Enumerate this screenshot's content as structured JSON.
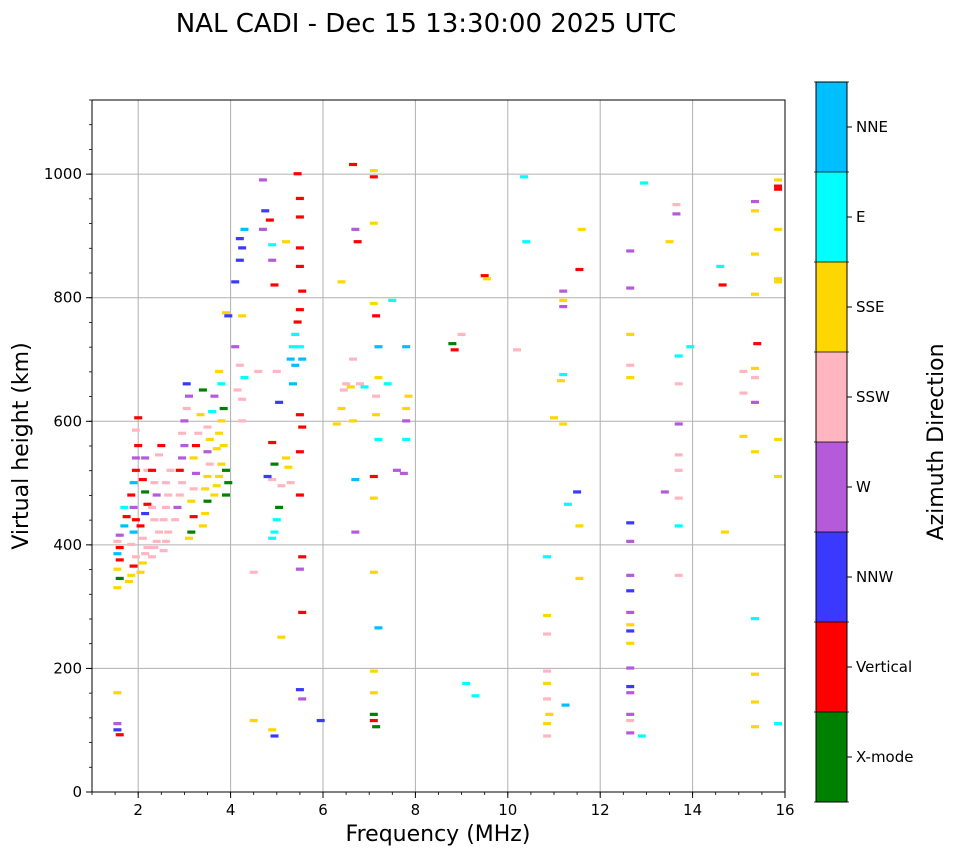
{
  "chart_data": {
    "type": "scatter",
    "title": "NAL CADI - Dec 15 13:30:00 2025 UTC",
    "xlabel": "Frequency (MHz)",
    "ylabel": "Virtual height (km)",
    "xlim": [
      1,
      16
    ],
    "ylim": [
      0,
      1120
    ],
    "xticks": [
      2,
      4,
      6,
      8,
      10,
      12,
      14,
      16
    ],
    "yticks": [
      0,
      200,
      400,
      600,
      800,
      1000
    ],
    "grid": true,
    "colorbar": {
      "title": "Azimuth Direction",
      "categories": [
        {
          "label": "X-mode",
          "color": "#008000"
        },
        {
          "label": "Vertical",
          "color": "#ff0000"
        },
        {
          "label": "NNW",
          "color": "#3a3aff"
        },
        {
          "label": "W",
          "color": "#b55ad8"
        },
        {
          "label": "SSW",
          "color": "#ffb6c1"
        },
        {
          "label": "SSE",
          "color": "#ffd700"
        },
        {
          "label": "E",
          "color": "#00ffff"
        },
        {
          "label": "NNE",
          "color": "#00bfff"
        }
      ]
    },
    "points": [
      [
        1.55,
        110,
        "W"
      ],
      [
        1.55,
        100,
        "NNW"
      ],
      [
        1.6,
        92,
        "Vertical"
      ],
      [
        1.55,
        160,
        "SSE"
      ],
      [
        1.55,
        330,
        "SSE"
      ],
      [
        1.6,
        345,
        "X-mode"
      ],
      [
        1.55,
        360,
        "SSE"
      ],
      [
        1.6,
        375,
        "Vertical"
      ],
      [
        1.55,
        385,
        "NNE"
      ],
      [
        1.6,
        395,
        "Vertical"
      ],
      [
        1.55,
        405,
        "SSW"
      ],
      [
        1.6,
        415,
        "W"
      ],
      [
        1.7,
        430,
        "NNE"
      ],
      [
        1.75,
        445,
        "Vertical"
      ],
      [
        1.7,
        460,
        "E"
      ],
      [
        1.8,
        340,
        "SSE"
      ],
      [
        1.85,
        350,
        "SSE"
      ],
      [
        1.9,
        365,
        "Vertical"
      ],
      [
        1.95,
        380,
        "SSW"
      ],
      [
        1.85,
        400,
        "SSW"
      ],
      [
        1.9,
        420,
        "NNE"
      ],
      [
        1.95,
        440,
        "Vertical"
      ],
      [
        1.9,
        460,
        "W"
      ],
      [
        1.85,
        480,
        "Vertical"
      ],
      [
        1.9,
        500,
        "NNE"
      ],
      [
        1.95,
        520,
        "Vertical"
      ],
      [
        1.95,
        540,
        "W"
      ],
      [
        2.0,
        560,
        "Vertical"
      ],
      [
        1.95,
        585,
        "SSW"
      ],
      [
        2.0,
        605,
        "Vertical"
      ],
      [
        2.05,
        355,
        "SSE"
      ],
      [
        2.1,
        370,
        "SSE"
      ],
      [
        2.15,
        385,
        "SSW"
      ],
      [
        2.2,
        395,
        "SSW"
      ],
      [
        2.1,
        410,
        "SSW"
      ],
      [
        2.05,
        430,
        "Vertical"
      ],
      [
        2.15,
        450,
        "NNW"
      ],
      [
        2.2,
        465,
        "Vertical"
      ],
      [
        2.15,
        485,
        "X-mode"
      ],
      [
        2.1,
        505,
        "Vertical"
      ],
      [
        2.2,
        520,
        "SSW"
      ],
      [
        2.15,
        540,
        "W"
      ],
      [
        2.3,
        380,
        "SSW"
      ],
      [
        2.35,
        395,
        "SSW"
      ],
      [
        2.4,
        405,
        "SSW"
      ],
      [
        2.45,
        420,
        "SSW"
      ],
      [
        2.35,
        440,
        "SSW"
      ],
      [
        2.3,
        460,
        "SSW"
      ],
      [
        2.4,
        480,
        "W"
      ],
      [
        2.35,
        500,
        "SSW"
      ],
      [
        2.3,
        520,
        "Vertical"
      ],
      [
        2.45,
        545,
        "SSW"
      ],
      [
        2.5,
        560,
        "Vertical"
      ],
      [
        2.55,
        390,
        "SSW"
      ],
      [
        2.6,
        405,
        "SSW"
      ],
      [
        2.65,
        420,
        "SSW"
      ],
      [
        2.55,
        440,
        "SSW"
      ],
      [
        2.6,
        460,
        "SSW"
      ],
      [
        2.65,
        480,
        "SSW"
      ],
      [
        2.6,
        500,
        "SSW"
      ],
      [
        2.7,
        520,
        "SSW"
      ],
      [
        2.8,
        440,
        "SSW"
      ],
      [
        2.85,
        460,
        "W"
      ],
      [
        2.9,
        480,
        "SSW"
      ],
      [
        2.95,
        500,
        "SSW"
      ],
      [
        2.9,
        520,
        "Vertical"
      ],
      [
        2.95,
        540,
        "W"
      ],
      [
        3.0,
        560,
        "W"
      ],
      [
        2.95,
        580,
        "SSW"
      ],
      [
        3.0,
        600,
        "W"
      ],
      [
        3.05,
        620,
        "SSW"
      ],
      [
        3.1,
        640,
        "W"
      ],
      [
        3.05,
        660,
        "NNW"
      ],
      [
        3.1,
        410,
        "SSE"
      ],
      [
        3.15,
        420,
        "X-mode"
      ],
      [
        3.2,
        445,
        "Vertical"
      ],
      [
        3.15,
        470,
        "SSE"
      ],
      [
        3.2,
        490,
        "SSW"
      ],
      [
        3.25,
        515,
        "W"
      ],
      [
        3.2,
        540,
        "SSE"
      ],
      [
        3.25,
        560,
        "Vertical"
      ],
      [
        3.3,
        580,
        "SSW"
      ],
      [
        3.35,
        610,
        "SSE"
      ],
      [
        3.4,
        650,
        "X-mode"
      ],
      [
        3.4,
        430,
        "SSE"
      ],
      [
        3.45,
        450,
        "SSE"
      ],
      [
        3.5,
        470,
        "X-mode"
      ],
      [
        3.45,
        490,
        "SSE"
      ],
      [
        3.5,
        510,
        "SSE"
      ],
      [
        3.55,
        530,
        "SSW"
      ],
      [
        3.5,
        550,
        "W"
      ],
      [
        3.55,
        570,
        "SSE"
      ],
      [
        3.5,
        590,
        "SSW"
      ],
      [
        3.6,
        615,
        "E"
      ],
      [
        3.65,
        640,
        "W"
      ],
      [
        3.65,
        480,
        "SSE"
      ],
      [
        3.7,
        495,
        "SSE"
      ],
      [
        3.75,
        510,
        "SSE"
      ],
      [
        3.8,
        530,
        "SSE"
      ],
      [
        3.7,
        555,
        "SSE"
      ],
      [
        3.75,
        580,
        "SSE"
      ],
      [
        3.8,
        600,
        "SSE"
      ],
      [
        3.85,
        620,
        "X-mode"
      ],
      [
        3.8,
        660,
        "E"
      ],
      [
        3.75,
        680,
        "SSE"
      ],
      [
        3.9,
        480,
        "X-mode"
      ],
      [
        3.95,
        500,
        "X-mode"
      ],
      [
        3.9,
        520,
        "X-mode"
      ],
      [
        3.85,
        560,
        "SSE"
      ],
      [
        3.9,
        775,
        "SSE"
      ],
      [
        3.95,
        770,
        "NNW"
      ],
      [
        4.1,
        720,
        "W"
      ],
      [
        4.2,
        690,
        "SSW"
      ],
      [
        4.15,
        650,
        "SSW"
      ],
      [
        4.25,
        635,
        "SSW"
      ],
      [
        4.3,
        670,
        "E"
      ],
      [
        4.25,
        600,
        "SSW"
      ],
      [
        4.1,
        825,
        "NNW"
      ],
      [
        4.2,
        860,
        "NNW"
      ],
      [
        4.25,
        880,
        "NNW"
      ],
      [
        4.3,
        910,
        "NNE"
      ],
      [
        4.2,
        895,
        "NNW"
      ],
      [
        4.25,
        770,
        "SSE"
      ],
      [
        4.5,
        115,
        "SSE"
      ],
      [
        4.5,
        355,
        "SSW"
      ],
      [
        4.6,
        680,
        "SSW"
      ],
      [
        4.7,
        990,
        "W"
      ],
      [
        4.75,
        940,
        "NNW"
      ],
      [
        4.7,
        910,
        "W"
      ],
      [
        4.85,
        925,
        "Vertical"
      ],
      [
        4.9,
        885,
        "E"
      ],
      [
        4.9,
        860,
        "W"
      ],
      [
        4.95,
        820,
        "Vertical"
      ],
      [
        4.9,
        565,
        "Vertical"
      ],
      [
        4.95,
        530,
        "X-mode"
      ],
      [
        4.9,
        505,
        "SSW"
      ],
      [
        4.8,
        510,
        "NNW"
      ],
      [
        4.9,
        100,
        "SSE"
      ],
      [
        4.95,
        90,
        "NNW"
      ],
      [
        4.9,
        410,
        "E"
      ],
      [
        4.95,
        420,
        "E"
      ],
      [
        5.0,
        440,
        "E"
      ],
      [
        5.05,
        460,
        "X-mode"
      ],
      [
        5.1,
        495,
        "SSW"
      ],
      [
        5.05,
        630,
        "NNW"
      ],
      [
        5.0,
        680,
        "SSW"
      ],
      [
        5.1,
        250,
        "SSE"
      ],
      [
        5.2,
        540,
        "SSE"
      ],
      [
        5.25,
        525,
        "SSE"
      ],
      [
        5.3,
        500,
        "SSW"
      ],
      [
        5.2,
        890,
        "SSE"
      ],
      [
        5.3,
        700,
        "NNE"
      ],
      [
        5.4,
        690,
        "NNE"
      ],
      [
        5.35,
        720,
        "E"
      ],
      [
        5.4,
        740,
        "E"
      ],
      [
        5.35,
        660,
        "NNE"
      ],
      [
        5.45,
        1000,
        "Vertical"
      ],
      [
        5.5,
        960,
        "Vertical"
      ],
      [
        5.5,
        930,
        "Vertical"
      ],
      [
        5.5,
        880,
        "Vertical"
      ],
      [
        5.5,
        850,
        "Vertical"
      ],
      [
        5.55,
        810,
        "Vertical"
      ],
      [
        5.5,
        780,
        "Vertical"
      ],
      [
        5.45,
        760,
        "Vertical"
      ],
      [
        5.5,
        720,
        "E"
      ],
      [
        5.55,
        700,
        "NNE"
      ],
      [
        5.5,
        610,
        "Vertical"
      ],
      [
        5.55,
        590,
        "Vertical"
      ],
      [
        5.5,
        550,
        "Vertical"
      ],
      [
        5.5,
        480,
        "Vertical"
      ],
      [
        5.55,
        380,
        "Vertical"
      ],
      [
        5.5,
        360,
        "W"
      ],
      [
        5.55,
        290,
        "Vertical"
      ],
      [
        5.5,
        165,
        "NNW"
      ],
      [
        5.55,
        150,
        "W"
      ],
      [
        5.95,
        115,
        "NNW"
      ],
      [
        6.3,
        595,
        "SSE"
      ],
      [
        6.4,
        620,
        "SSE"
      ],
      [
        6.45,
        650,
        "SSW"
      ],
      [
        6.5,
        660,
        "SSW"
      ],
      [
        6.6,
        655,
        "SSE"
      ],
      [
        6.65,
        600,
        "SSE"
      ],
      [
        6.65,
        700,
        "SSW"
      ],
      [
        6.7,
        420,
        "W"
      ],
      [
        6.7,
        505,
        "NNE"
      ],
      [
        6.8,
        660,
        "SSW"
      ],
      [
        6.9,
        655,
        "E"
      ],
      [
        6.75,
        890,
        "Vertical"
      ],
      [
        6.7,
        910,
        "W"
      ],
      [
        6.65,
        1015,
        "Vertical"
      ],
      [
        6.4,
        825,
        "SSE"
      ],
      [
        7.1,
        1005,
        "SSE"
      ],
      [
        7.1,
        995,
        "Vertical"
      ],
      [
        7.1,
        920,
        "SSE"
      ],
      [
        7.1,
        790,
        "SSE"
      ],
      [
        7.15,
        770,
        "Vertical"
      ],
      [
        7.2,
        720,
        "NNE"
      ],
      [
        7.2,
        670,
        "SSE"
      ],
      [
        7.15,
        640,
        "SSW"
      ],
      [
        7.15,
        610,
        "SSE"
      ],
      [
        7.2,
        570,
        "E"
      ],
      [
        7.1,
        510,
        "Vertical"
      ],
      [
        7.1,
        475,
        "SSE"
      ],
      [
        7.1,
        355,
        "SSE"
      ],
      [
        7.2,
        265,
        "NNE"
      ],
      [
        7.1,
        195,
        "SSE"
      ],
      [
        7.1,
        160,
        "SSE"
      ],
      [
        7.1,
        125,
        "X-mode"
      ],
      [
        7.1,
        115,
        "Vertical"
      ],
      [
        7.15,
        105,
        "X-mode"
      ],
      [
        7.4,
        660,
        "E"
      ],
      [
        7.5,
        795,
        "E"
      ],
      [
        7.6,
        520,
        "W"
      ],
      [
        7.8,
        720,
        "NNE"
      ],
      [
        7.8,
        620,
        "SSE"
      ],
      [
        7.8,
        600,
        "W"
      ],
      [
        7.8,
        570,
        "E"
      ],
      [
        7.75,
        515,
        "W"
      ],
      [
        7.85,
        640,
        "SSE"
      ],
      [
        8.8,
        725,
        "X-mode"
      ],
      [
        8.85,
        715,
        "Vertical"
      ],
      [
        9.0,
        740,
        "SSW"
      ],
      [
        9.1,
        175,
        "E"
      ],
      [
        9.3,
        155,
        "E"
      ],
      [
        9.5,
        835,
        "Vertical"
      ],
      [
        9.55,
        830,
        "SSE"
      ],
      [
        10.2,
        715,
        "SSW"
      ],
      [
        10.35,
        995,
        "E"
      ],
      [
        10.4,
        890,
        "E"
      ],
      [
        10.85,
        380,
        "E"
      ],
      [
        10.85,
        285,
        "SSE"
      ],
      [
        10.85,
        255,
        "SSW"
      ],
      [
        10.85,
        195,
        "SSW"
      ],
      [
        10.85,
        175,
        "SSE"
      ],
      [
        10.85,
        150,
        "SSW"
      ],
      [
        10.9,
        125,
        "SSE"
      ],
      [
        10.85,
        110,
        "SSE"
      ],
      [
        10.85,
        90,
        "SSW"
      ],
      [
        11.0,
        605,
        "SSE"
      ],
      [
        11.2,
        595,
        "SSE"
      ],
      [
        11.15,
        665,
        "SSE"
      ],
      [
        11.2,
        675,
        "E"
      ],
      [
        11.2,
        810,
        "W"
      ],
      [
        11.2,
        795,
        "SSE"
      ],
      [
        11.2,
        785,
        "W"
      ],
      [
        11.3,
        465,
        "E"
      ],
      [
        11.5,
        485,
        "NNW"
      ],
      [
        11.55,
        345,
        "SSE"
      ],
      [
        11.55,
        430,
        "SSE"
      ],
      [
        11.55,
        845,
        "Vertical"
      ],
      [
        11.6,
        910,
        "SSE"
      ],
      [
        11.25,
        140,
        "NNE"
      ],
      [
        12.65,
        875,
        "W"
      ],
      [
        12.65,
        815,
        "W"
      ],
      [
        12.65,
        740,
        "SSE"
      ],
      [
        12.65,
        690,
        "SSW"
      ],
      [
        12.65,
        670,
        "SSE"
      ],
      [
        12.65,
        435,
        "NNW"
      ],
      [
        12.65,
        405,
        "W"
      ],
      [
        12.65,
        350,
        "W"
      ],
      [
        12.65,
        325,
        "NNW"
      ],
      [
        12.65,
        290,
        "W"
      ],
      [
        12.65,
        270,
        "SSE"
      ],
      [
        12.65,
        260,
        "NNW"
      ],
      [
        12.65,
        240,
        "SSE"
      ],
      [
        12.65,
        200,
        "W"
      ],
      [
        12.65,
        170,
        "NNW"
      ],
      [
        12.65,
        160,
        "W"
      ],
      [
        12.65,
        125,
        "W"
      ],
      [
        12.65,
        115,
        "SSW"
      ],
      [
        12.65,
        95,
        "W"
      ],
      [
        12.9,
        90,
        "E"
      ],
      [
        12.95,
        985,
        "E"
      ],
      [
        13.4,
        485,
        "W"
      ],
      [
        13.5,
        890,
        "SSE"
      ],
      [
        13.65,
        950,
        "SSW"
      ],
      [
        13.65,
        935,
        "W"
      ],
      [
        13.7,
        705,
        "E"
      ],
      [
        13.7,
        660,
        "SSW"
      ],
      [
        13.7,
        595,
        "W"
      ],
      [
        13.7,
        545,
        "SSW"
      ],
      [
        13.7,
        520,
        "SSW"
      ],
      [
        13.7,
        475,
        "SSW"
      ],
      [
        13.7,
        430,
        "E"
      ],
      [
        13.7,
        350,
        "SSW"
      ],
      [
        13.95,
        720,
        "E"
      ],
      [
        14.6,
        850,
        "E"
      ],
      [
        14.65,
        820,
        "Vertical"
      ],
      [
        14.7,
        420,
        "SSE"
      ],
      [
        15.1,
        575,
        "SSE"
      ],
      [
        15.1,
        680,
        "SSW"
      ],
      [
        15.1,
        645,
        "SSW"
      ],
      [
        15.35,
        955,
        "W"
      ],
      [
        15.35,
        940,
        "SSE"
      ],
      [
        15.35,
        870,
        "SSE"
      ],
      [
        15.35,
        805,
        "SSE"
      ],
      [
        15.4,
        725,
        "Vertical"
      ],
      [
        15.35,
        685,
        "SSE"
      ],
      [
        15.35,
        670,
        "SSW"
      ],
      [
        15.35,
        630,
        "W"
      ],
      [
        15.35,
        550,
        "SSE"
      ],
      [
        15.35,
        280,
        "E"
      ],
      [
        15.35,
        190,
        "SSE"
      ],
      [
        15.35,
        145,
        "SSE"
      ],
      [
        15.35,
        105,
        "SSE"
      ],
      [
        15.85,
        990,
        "SSE"
      ],
      [
        15.85,
        980,
        "Vertical"
      ],
      [
        15.85,
        975,
        "Vertical"
      ],
      [
        15.85,
        910,
        "SSE"
      ],
      [
        15.85,
        830,
        "SSE"
      ],
      [
        15.85,
        825,
        "SSE"
      ],
      [
        15.85,
        570,
        "SSE"
      ],
      [
        15.85,
        510,
        "SSE"
      ],
      [
        15.85,
        110,
        "E"
      ]
    ]
  }
}
